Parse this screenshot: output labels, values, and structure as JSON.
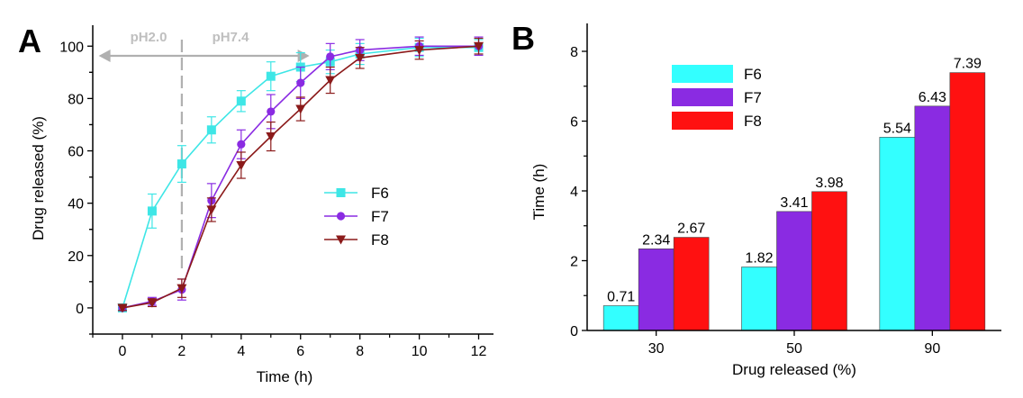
{
  "chart_data": [
    {
      "panel": "A",
      "type": "line",
      "xlabel": "Time (h)",
      "ylabel": "Drug released (%)",
      "xlim": [
        -1,
        12.5
      ],
      "ylim": [
        -10,
        108
      ],
      "xticks": [
        0,
        2,
        4,
        6,
        8,
        10,
        12
      ],
      "yticks": [
        0,
        20,
        40,
        60,
        80,
        100
      ],
      "annotations": {
        "phase1": "pH2.0",
        "phase2": "pH7.4",
        "divider_x": 2
      },
      "legend_position": "center-right",
      "series": [
        {
          "name": "F6",
          "color": "#3ee6e6",
          "marker": "square",
          "x": [
            0,
            1,
            2,
            3,
            4,
            5,
            6,
            7,
            8,
            10,
            12
          ],
          "y": [
            0,
            37,
            55,
            68,
            79,
            88.5,
            92,
            94,
            97,
            99.5,
            99.5
          ],
          "err": [
            1,
            6.5,
            7,
            5,
            4,
            5.5,
            5.5,
            4.5,
            4,
            3.5,
            3
          ]
        },
        {
          "name": "F7",
          "color": "#8a2be2",
          "marker": "circle",
          "x": [
            0,
            1,
            2,
            3,
            4,
            5,
            6,
            7,
            8,
            10,
            12
          ],
          "y": [
            0,
            2.5,
            7,
            41,
            62.5,
            75,
            86,
            96,
            98.5,
            100,
            100
          ],
          "err": [
            1,
            1.5,
            4,
            6.5,
            5.5,
            6.5,
            6,
            5,
            4,
            3.5,
            3.5
          ]
        },
        {
          "name": "F8",
          "color": "#8b1a1a",
          "marker": "triangle-down",
          "x": [
            0,
            1,
            2,
            3,
            4,
            5,
            6,
            7,
            8,
            10,
            12
          ],
          "y": [
            0,
            2,
            7.5,
            37.5,
            54.5,
            65.5,
            76,
            87,
            95.5,
            98.5,
            100
          ],
          "err": [
            1,
            1.5,
            3.5,
            4.5,
            5,
            5.5,
            4.5,
            5,
            4,
            3.5,
            3
          ]
        }
      ]
    },
    {
      "panel": "B",
      "type": "bar",
      "xlabel": "Drug released (%)",
      "ylabel": "Time (h)",
      "categories": [
        "30",
        "50",
        "90"
      ],
      "ylim": [
        0,
        8.8
      ],
      "yticks": [
        0,
        2,
        4,
        6,
        8
      ],
      "legend_position": "top-left",
      "series": [
        {
          "name": "F6",
          "color": "#33ffff",
          "values": [
            0.71,
            1.82,
            5.54
          ],
          "labels": [
            "0.71",
            "1.82",
            "5.54"
          ]
        },
        {
          "name": "F7",
          "color": "#8a2be2",
          "values": [
            2.34,
            3.41,
            6.43
          ],
          "labels": [
            "2.34",
            "3.41",
            "6.43"
          ]
        },
        {
          "name": "F8",
          "color": "#ff1111",
          "values": [
            2.67,
            3.98,
            7.39
          ],
          "labels": [
            "2.67",
            "3.98",
            "7.39"
          ]
        }
      ]
    }
  ]
}
